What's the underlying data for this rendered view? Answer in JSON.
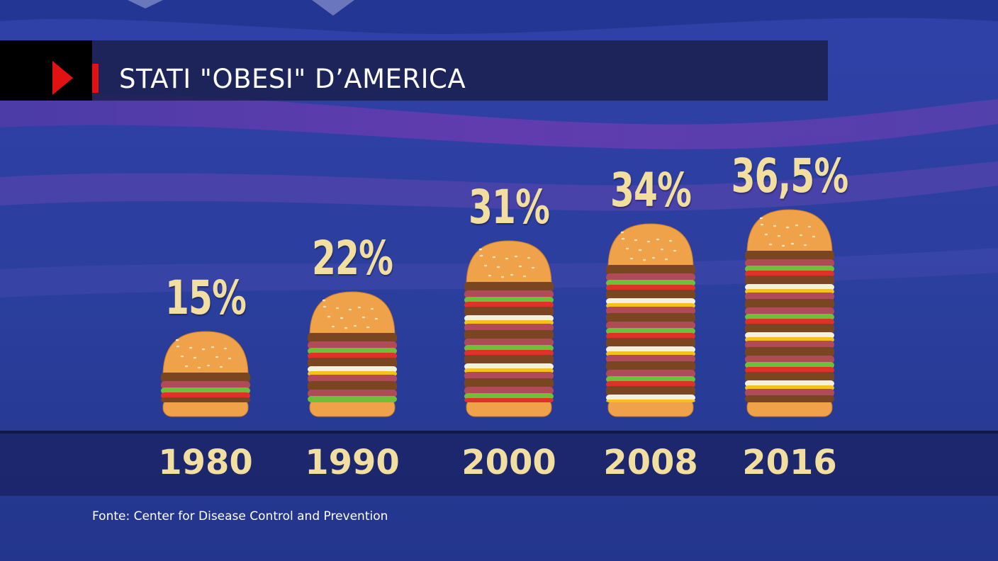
{
  "header": {
    "title": "STATI \"OBESI\" D’AMERICA"
  },
  "chart_data": {
    "type": "bar",
    "title": "STATI \"OBESI\" D’AMERICA",
    "categories": [
      "1980",
      "1990",
      "2000",
      "2008",
      "2016"
    ],
    "values": [
      15,
      22,
      31,
      34,
      36.5
    ],
    "value_labels": [
      "15%",
      "22%",
      "31%",
      "34%",
      "36,5%"
    ],
    "xlabel": "",
    "ylabel": "",
    "ylim": [
      0,
      40
    ],
    "grid": false,
    "legend": "none",
    "mark": "stacked-hamburger"
  },
  "footer": {
    "source": "Fonte: Center for Disease Control and Prevention"
  },
  "colors": {
    "accent_red": "#e31212",
    "label_gold": "#f2dfa0",
    "bun": "#f0a24a",
    "patty": "#7a4521",
    "salami": "#b04a58",
    "lettuce": "#6fbf3a",
    "tomato": "#e0302a",
    "cheese": "#f5c21c"
  },
  "icons": {
    "play": "play-icon"
  }
}
